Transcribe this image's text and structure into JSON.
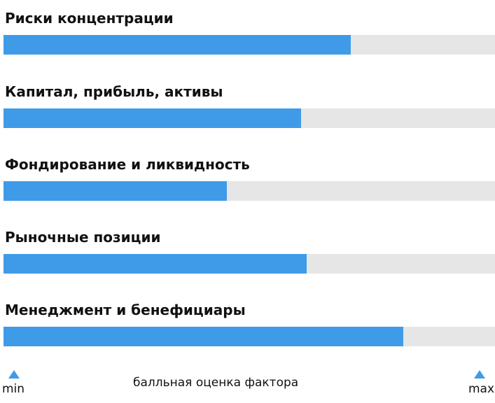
{
  "chart_data": {
    "type": "bar",
    "orientation": "horizontal",
    "categories": [
      "Риски концентрации",
      "Капитал, прибыль, активы",
      "Фондирование и ликвидность",
      "Рыночные позиции",
      "Менеджмент и бенефициары"
    ],
    "values": [
      0.706,
      0.606,
      0.455,
      0.617,
      0.814
    ],
    "value_scale": "fraction of max",
    "x_min_label": "min",
    "x_max_label": "max",
    "xlabel": "балльная оценка фактора",
    "title": "",
    "grid": false,
    "colors": {
      "fill": "#3f9be8",
      "track": "#e6e6e6"
    }
  }
}
